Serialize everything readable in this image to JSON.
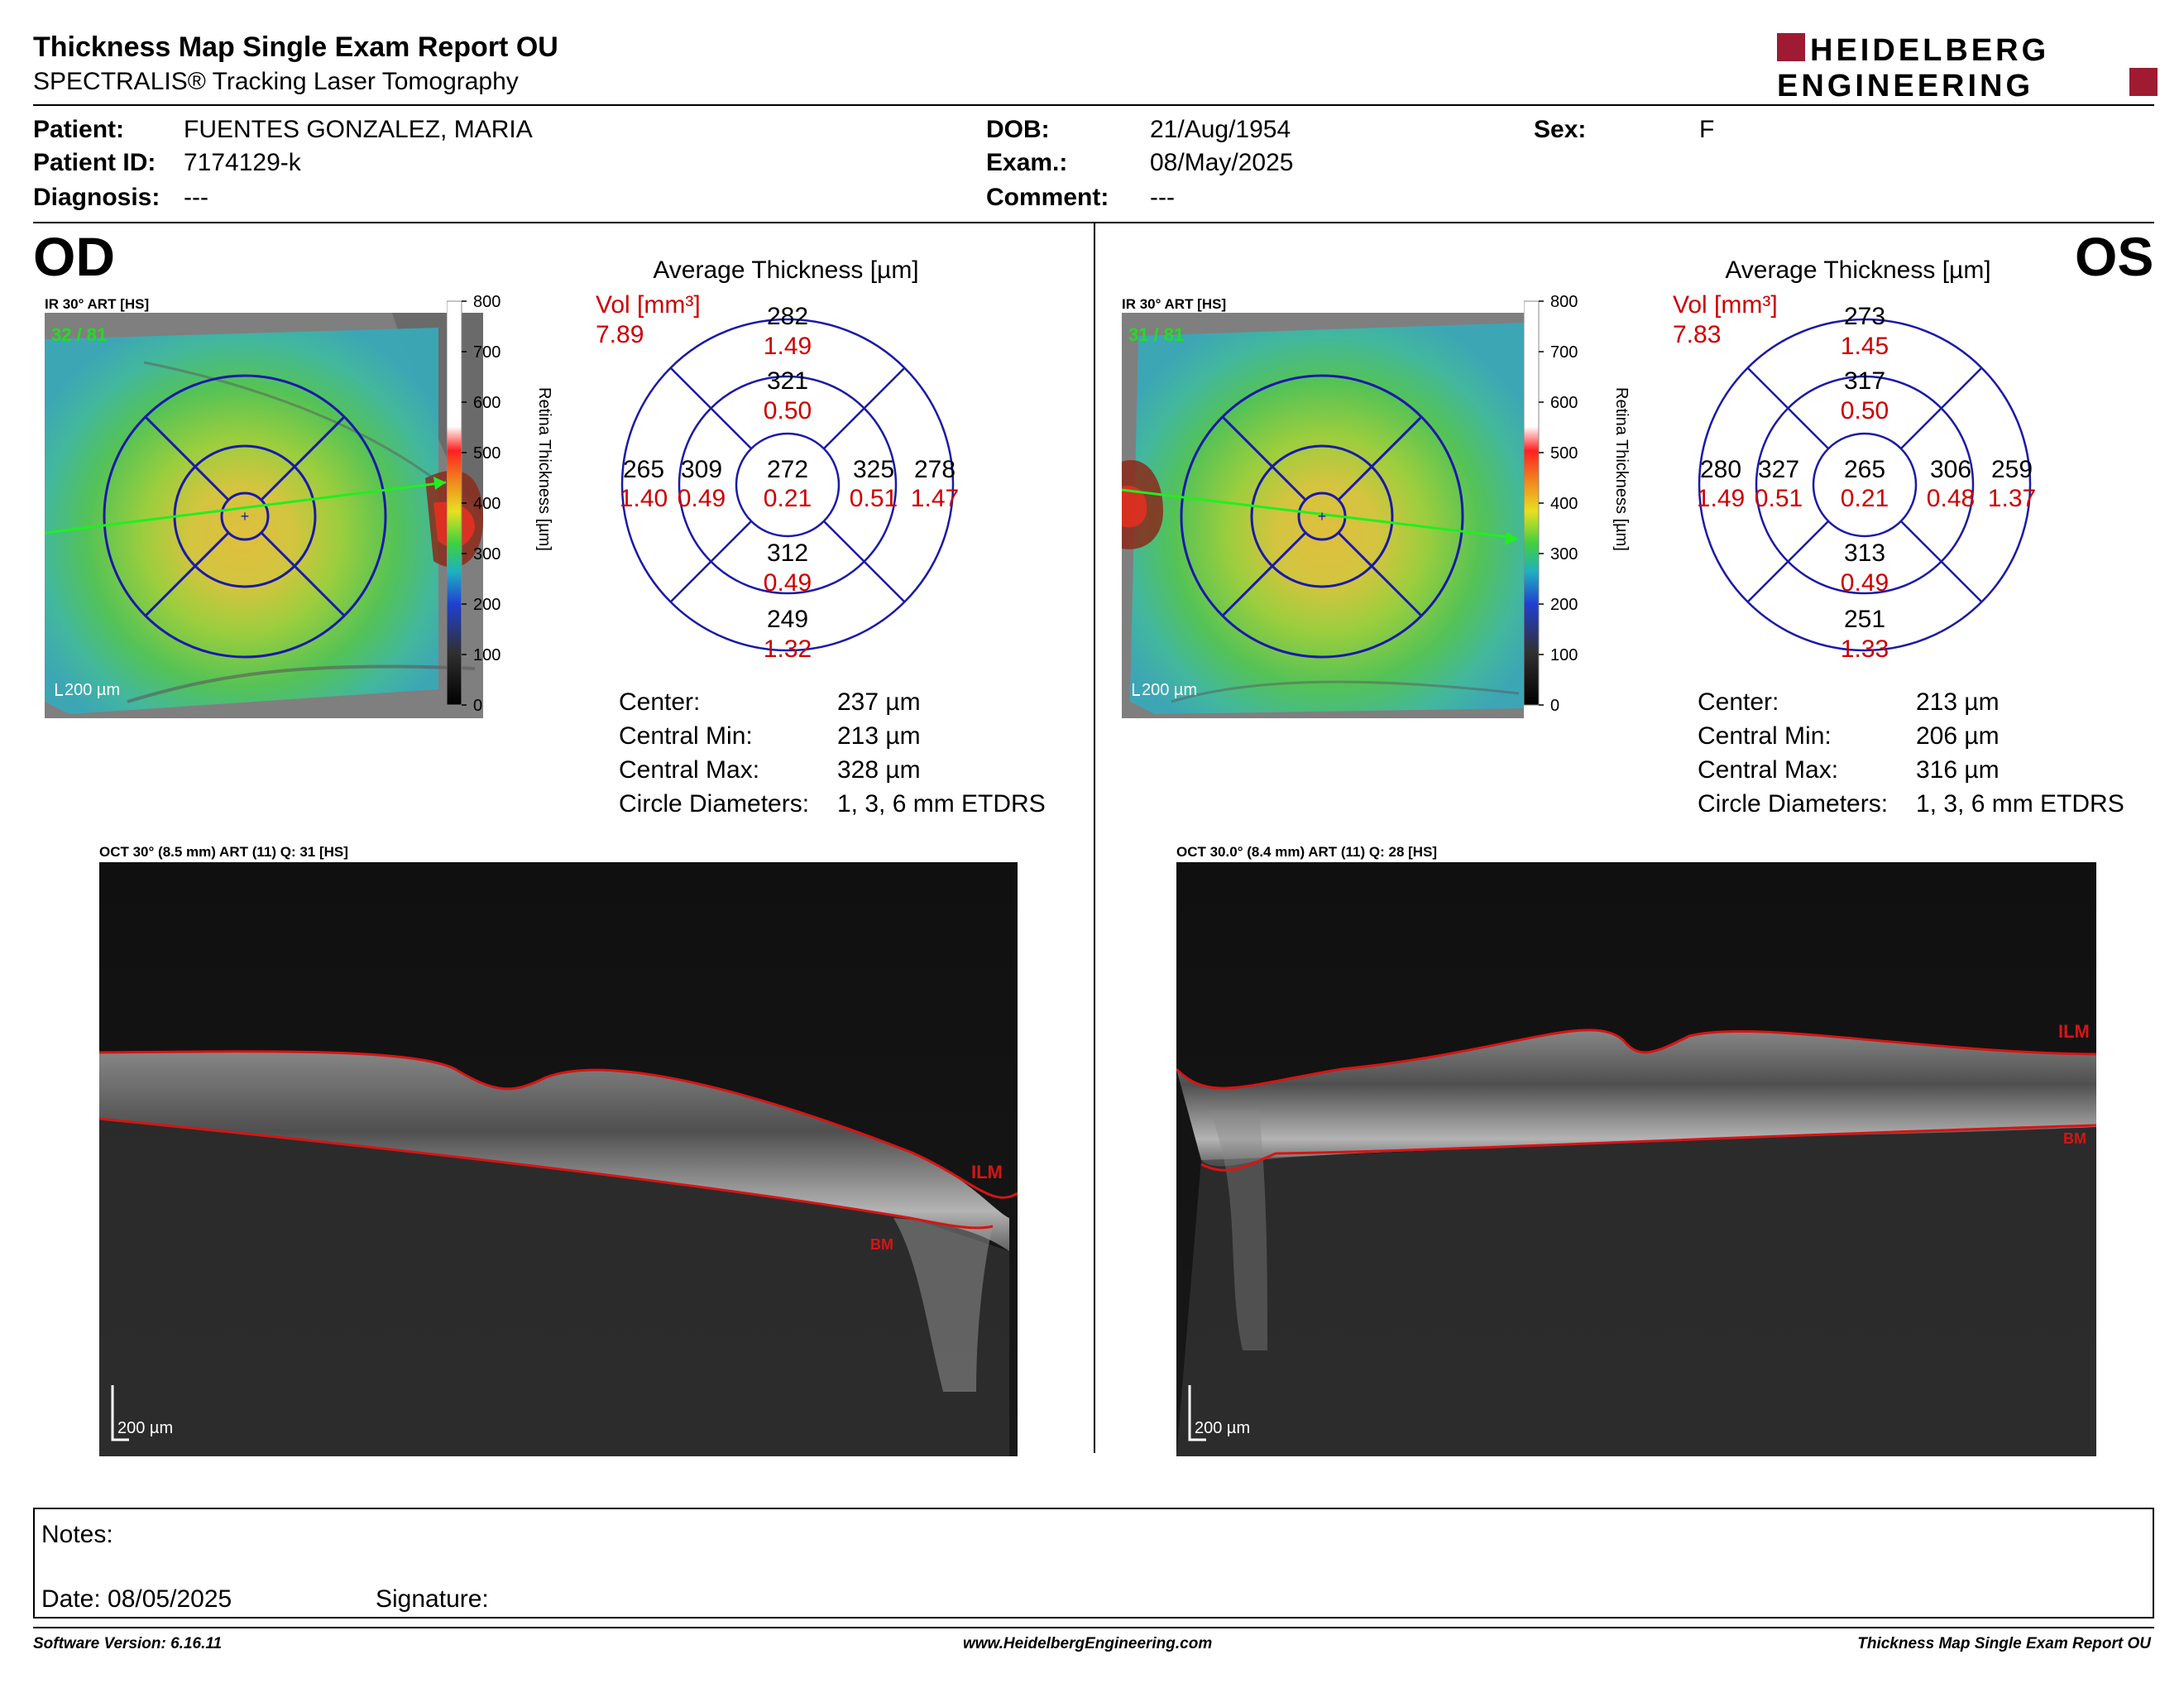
{
  "report": {
    "title": "Thickness Map Single Exam Report OU",
    "subtitle": "SPECTRALIS® Tracking Laser Tomography",
    "logo": {
      "line1": "HEIDELBERG",
      "line2": "ENGINEERING",
      "color": "#9e1b32"
    }
  },
  "patient": {
    "patient_label": "Patient:",
    "patient": "FUENTES GONZALEZ, MARIA",
    "id_label": "Patient ID:",
    "id": "7174129-k",
    "diagnosis_label": "Diagnosis:",
    "diagnosis": "---",
    "dob_label": "DOB:",
    "dob": "21/Aug/1954",
    "exam_label": "Exam.:",
    "exam": "08/May/2025",
    "comment_label": "Comment:",
    "comment": "---",
    "sex_label": "Sex:",
    "sex": "F"
  },
  "od": {
    "eye": "OD",
    "ir_label": "IR 30° ART [HS]",
    "ir_quality": "32 / 81",
    "scale": "200 µm",
    "colorbar_ticks": [
      "800",
      "700",
      "600",
      "500",
      "400",
      "300",
      "200",
      "100",
      "0"
    ],
    "colorbar_title": "Retina Thickness [µm]",
    "avg_title": "Average Thickness [µm]",
    "vol_label": "Vol [mm³]",
    "vol_total": "7.89",
    "sectors": {
      "center": {
        "t": "272",
        "v": "0.21"
      },
      "inner_superior": {
        "t": "321",
        "v": "0.50"
      },
      "inner_inferior": {
        "t": "312",
        "v": "0.49"
      },
      "inner_left": {
        "t": "309",
        "v": "0.49"
      },
      "inner_right": {
        "t": "325",
        "v": "0.51"
      },
      "outer_superior": {
        "t": "282",
        "v": "1.49"
      },
      "outer_inferior": {
        "t": "249",
        "v": "1.32"
      },
      "outer_left": {
        "t": "265",
        "v": "1.40"
      },
      "outer_right": {
        "t": "278",
        "v": "1.47"
      }
    },
    "stats": [
      {
        "label": "Center:",
        "value": "237 µm"
      },
      {
        "label": "Central Min:",
        "value": "213 µm"
      },
      {
        "label": "Central Max:",
        "value": "328 µm"
      },
      {
        "label": "Circle Diameters:",
        "value": "1, 3, 6 mm ETDRS"
      }
    ],
    "oct_label": "OCT 30° (8.5 mm) ART (11) Q: 31 [HS]",
    "ilm": "ILM",
    "bm": "BM",
    "oct_scale": "200 µm"
  },
  "os": {
    "eye": "OS",
    "ir_label": "IR 30° ART [HS]",
    "ir_quality": "31 / 81",
    "scale": "200 µm",
    "colorbar_ticks": [
      "800",
      "700",
      "600",
      "500",
      "400",
      "300",
      "200",
      "100",
      "0"
    ],
    "colorbar_title": "Retina Thickness [µm]",
    "avg_title": "Average Thickness [µm]",
    "vol_label": "Vol [mm³]",
    "vol_total": "7.83",
    "sectors": {
      "center": {
        "t": "265",
        "v": "0.21"
      },
      "inner_superior": {
        "t": "317",
        "v": "0.50"
      },
      "inner_inferior": {
        "t": "313",
        "v": "0.49"
      },
      "inner_left": {
        "t": "327",
        "v": "0.51"
      },
      "inner_right": {
        "t": "306",
        "v": "0.48"
      },
      "outer_superior": {
        "t": "273",
        "v": "1.45"
      },
      "outer_inferior": {
        "t": "251",
        "v": "1.33"
      },
      "outer_left": {
        "t": "280",
        "v": "1.49"
      },
      "outer_right": {
        "t": "259",
        "v": "1.37"
      }
    },
    "stats": [
      {
        "label": "Center:",
        "value": "213 µm"
      },
      {
        "label": "Central Min:",
        "value": "206 µm"
      },
      {
        "label": "Central Max:",
        "value": "316 µm"
      },
      {
        "label": "Circle Diameters:",
        "value": "1, 3, 6 mm ETDRS"
      }
    ],
    "oct_label": "OCT 30.0° (8.4 mm) ART (11) Q: 28 [HS]",
    "ilm": "ILM",
    "bm": "BM",
    "oct_scale": "200 µm"
  },
  "notes": {
    "notes_label": "Notes:",
    "date_label": "Date: 08/05/2025",
    "signature_label": "Signature:"
  },
  "footer": {
    "left": "Software Version: 6.16.11",
    "center": "www.HeidelbergEngineering.com",
    "right": "Thickness Map Single Exam Report OU"
  },
  "colors": {
    "sector_lines": "#1a1aa8",
    "volume_red": "#cc0000",
    "oct_lines": "#d81414",
    "quality_green": "#22dd22"
  }
}
